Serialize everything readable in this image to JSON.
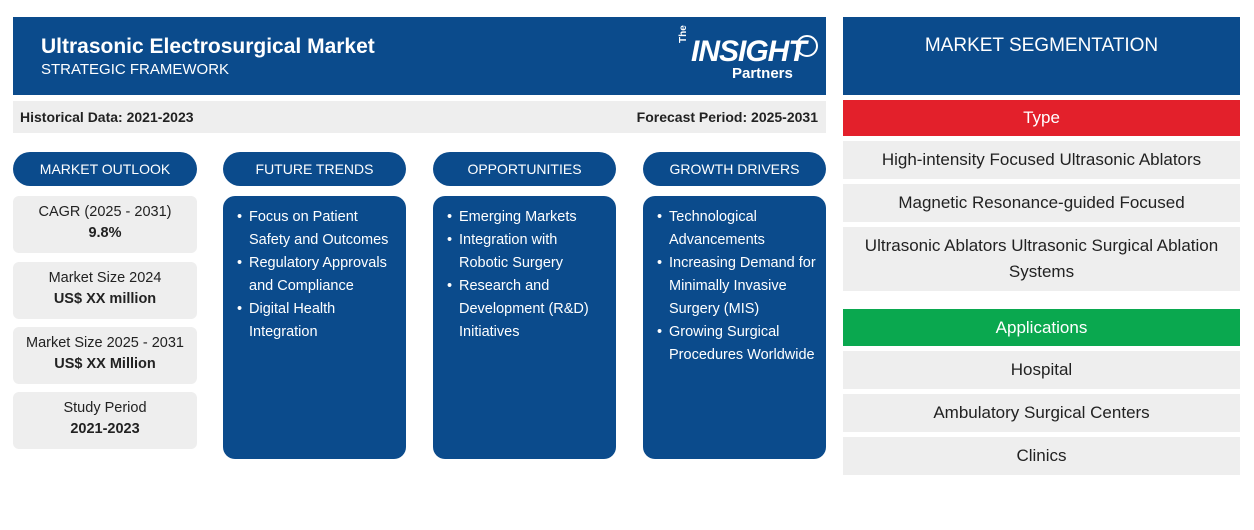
{
  "header": {
    "title": "Ultrasonic Electrosurgical Market",
    "subtitle": "STRATEGIC FRAMEWORK",
    "logo": {
      "the": "The",
      "insight": "INSIGHT",
      "partners": "Partners"
    }
  },
  "period": {
    "historical": "Historical Data: 2021-2023",
    "forecast": "Forecast Period: 2025-2031"
  },
  "columns": {
    "outlook": {
      "title": "MARKET OUTLOOK"
    },
    "trends": {
      "title": "FUTURE TRENDS",
      "items": [
        "Focus on Patient Safety and Outcomes",
        "Regulatory Approvals and Compliance",
        "Digital Health Integration"
      ]
    },
    "opportunities": {
      "title": "OPPORTUNITIES",
      "items": [
        "Emerging Markets",
        "Integration with Robotic Surgery",
        "Research and Development (R&D) Initiatives"
      ]
    },
    "drivers": {
      "title": "GROWTH DRIVERS",
      "items": [
        "Technological Advancements",
        "Increasing Demand for Minimally Invasive Surgery (MIS)",
        "Growing Surgical Procedures Worldwide"
      ]
    }
  },
  "outlook": [
    {
      "label": "CAGR (2025 - 2031)",
      "value": "9.8%"
    },
    {
      "label": "Market Size 2024",
      "value": "US$ XX million"
    },
    {
      "label": "Market Size 2025 - 2031",
      "value": "US$ XX Million"
    },
    {
      "label": "Study Period",
      "value": "2021-2023"
    }
  ],
  "segmentation": {
    "title": "MARKET SEGMENTATION",
    "type": {
      "label": "Type",
      "color": "#e3202b",
      "items": [
        "High-intensity Focused Ultrasonic Ablators",
        "Magnetic Resonance-guided Focused",
        "Ultrasonic Ablators Ultrasonic Surgical Ablation Systems"
      ]
    },
    "applications": {
      "label": "Applications",
      "color": "#0aa84f",
      "items": [
        "Hospital",
        "Ambulatory Surgical Centers",
        "Clinics"
      ]
    }
  },
  "colors": {
    "primary": "#0b4b8c",
    "panel": "#eeeeee"
  }
}
